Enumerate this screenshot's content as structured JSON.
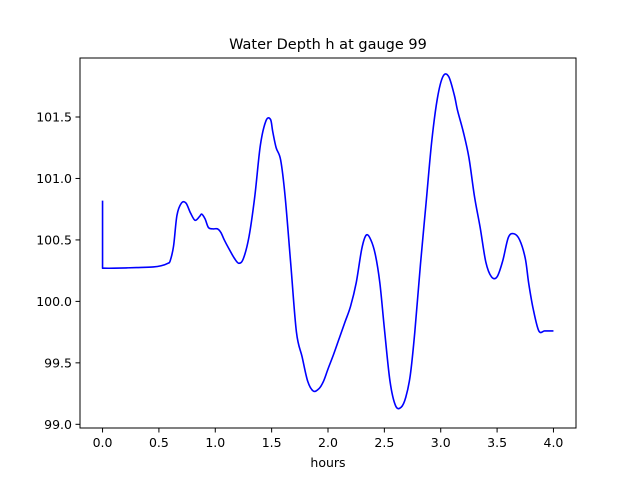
{
  "chart_data": {
    "type": "line",
    "title": "Water Depth h at gauge 99",
    "xlabel": "hours",
    "ylabel": "",
    "xlim": [
      -0.2,
      4.2
    ],
    "ylim": [
      98.97,
      101.98
    ],
    "xticks": [
      0.0,
      0.5,
      1.0,
      1.5,
      2.0,
      2.5,
      3.0,
      3.5,
      4.0
    ],
    "xtick_labels": [
      "0.0",
      "0.5",
      "1.0",
      "1.5",
      "2.0",
      "2.5",
      "3.0",
      "3.5",
      "4.0"
    ],
    "yticks": [
      99.0,
      99.5,
      100.0,
      100.5,
      101.0,
      101.5
    ],
    "ytick_labels": [
      "99.0",
      "99.5",
      "100.0",
      "100.5",
      "101.0",
      "101.5"
    ],
    "grid": false,
    "series": [
      {
        "color": "#0000ff",
        "x": [
          0.0,
          0.0,
          0.1,
          0.3,
          0.45,
          0.52,
          0.58,
          0.6,
          0.63,
          0.66,
          0.7,
          0.74,
          0.78,
          0.82,
          0.86,
          0.88,
          0.91,
          0.94,
          0.98,
          1.02,
          1.05,
          1.08,
          1.12,
          1.17,
          1.21,
          1.25,
          1.3,
          1.35,
          1.4,
          1.45,
          1.49,
          1.51,
          1.54,
          1.58,
          1.62,
          1.67,
          1.72,
          1.77,
          1.82,
          1.87,
          1.92,
          1.96,
          2.0,
          2.05,
          2.1,
          2.15,
          2.2,
          2.25,
          2.3,
          2.34,
          2.38,
          2.42,
          2.46,
          2.5,
          2.55,
          2.6,
          2.65,
          2.69,
          2.73,
          2.77,
          2.82,
          2.87,
          2.92,
          2.97,
          3.02,
          3.07,
          3.12,
          3.15,
          3.2,
          3.25,
          3.3,
          3.35,
          3.4,
          3.45,
          3.5,
          3.55,
          3.6,
          3.65,
          3.7,
          3.75,
          3.78,
          3.82,
          3.87,
          3.92,
          3.96,
          4.0
        ],
        "y": [
          100.82,
          100.27,
          100.27,
          100.275,
          100.28,
          100.29,
          100.31,
          100.33,
          100.45,
          100.7,
          100.8,
          100.8,
          100.72,
          100.66,
          100.69,
          100.71,
          100.67,
          100.6,
          100.59,
          100.59,
          100.56,
          100.5,
          100.43,
          100.35,
          100.31,
          100.35,
          100.53,
          100.85,
          101.27,
          101.47,
          101.48,
          101.38,
          101.25,
          101.15,
          100.85,
          100.3,
          99.75,
          99.55,
          99.35,
          99.27,
          99.29,
          99.35,
          99.45,
          99.57,
          99.7,
          99.83,
          99.96,
          100.15,
          100.43,
          100.54,
          100.5,
          100.38,
          100.15,
          99.78,
          99.35,
          99.15,
          99.14,
          99.22,
          99.4,
          99.75,
          100.3,
          100.8,
          101.3,
          101.65,
          101.83,
          101.83,
          101.68,
          101.55,
          101.38,
          101.17,
          100.85,
          100.6,
          100.32,
          100.2,
          100.2,
          100.33,
          100.52,
          100.55,
          100.5,
          100.35,
          100.15,
          99.94,
          99.76,
          99.76,
          99.76,
          99.76
        ]
      }
    ]
  }
}
